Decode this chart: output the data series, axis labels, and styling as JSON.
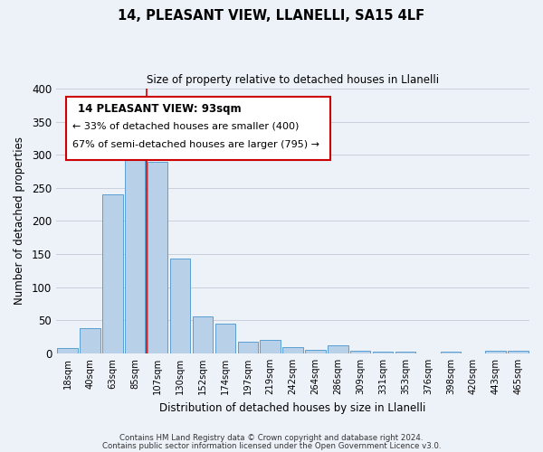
{
  "title": "14, PLEASANT VIEW, LLANELLI, SA15 4LF",
  "subtitle": "Size of property relative to detached houses in Llanelli",
  "xlabel": "Distribution of detached houses by size in Llanelli",
  "ylabel": "Number of detached properties",
  "bar_labels": [
    "18sqm",
    "40sqm",
    "63sqm",
    "85sqm",
    "107sqm",
    "130sqm",
    "152sqm",
    "174sqm",
    "197sqm",
    "219sqm",
    "242sqm",
    "264sqm",
    "286sqm",
    "309sqm",
    "331sqm",
    "353sqm",
    "376sqm",
    "398sqm",
    "420sqm",
    "443sqm",
    "465sqm"
  ],
  "bar_values": [
    8,
    38,
    240,
    307,
    290,
    143,
    56,
    45,
    18,
    20,
    9,
    5,
    12,
    4,
    3,
    2,
    0,
    3,
    0,
    4,
    4
  ],
  "bar_color": "#b8d0e8",
  "bar_edge_color": "#5a9fd4",
  "property_label": "14 PLEASANT VIEW: 93sqm",
  "annotation_line1": "← 33% of detached houses are smaller (400)",
  "annotation_line2": "67% of semi-detached houses are larger (795) →",
  "vline_x_pos": 3.5,
  "ylim": [
    0,
    400
  ],
  "yticks": [
    0,
    50,
    100,
    150,
    200,
    250,
    300,
    350,
    400
  ],
  "bg_color": "#edf2f9",
  "grid_color": "#c8d0dc",
  "footer_line1": "Contains HM Land Registry data © Crown copyright and database right 2024.",
  "footer_line2": "Contains public sector information licensed under the Open Government Licence v3.0.",
  "vline_color": "#cc0000",
  "box_edge_color": "#cc0000",
  "box_face_color": "#ffffff"
}
